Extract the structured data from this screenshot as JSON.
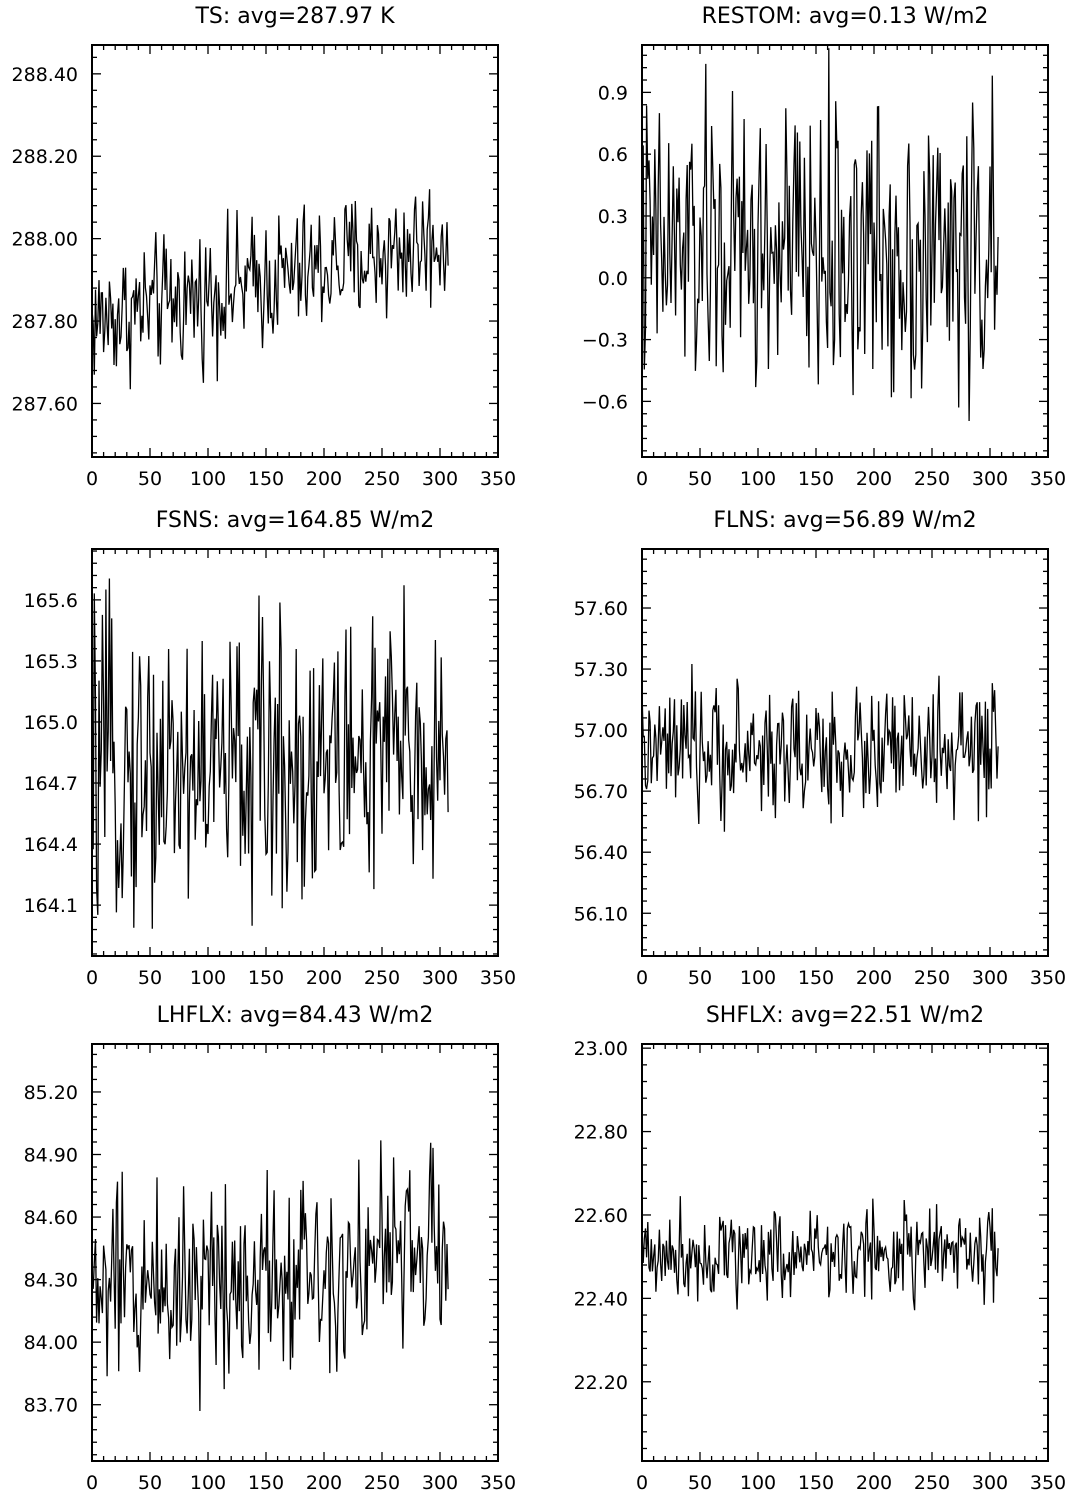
{
  "chart_data": [
    {
      "type": "line",
      "title": "TS: avg=287.97 K",
      "xlabel": "",
      "ylabel": "",
      "xlim": [
        0,
        350
      ],
      "ylim": [
        287.47,
        288.47
      ],
      "x_ticks": [
        0,
        50,
        100,
        150,
        200,
        250,
        300,
        350
      ],
      "x_tick_labels": [
        "0",
        "50",
        "100",
        "150",
        "200",
        "250",
        "300",
        "350"
      ],
      "y_ticks": [
        287.6,
        287.8,
        288.0,
        288.2,
        288.4
      ],
      "y_tick_labels": [
        "287.60",
        "287.80",
        "288.00",
        "288.20",
        "288.40"
      ],
      "series": [
        {
          "base": 287.9,
          "trend": 0.2,
          "amp": 0.1,
          "clip": [
            287.47,
            288.47
          ]
        }
      ]
    },
    {
      "type": "line",
      "title": "RESTOM: avg=0.13 W/m2",
      "xlabel": "",
      "ylabel": "",
      "xlim": [
        0,
        350
      ],
      "ylim": [
        -0.87,
        1.13
      ],
      "x_ticks": [
        0,
        50,
        100,
        150,
        200,
        250,
        300,
        350
      ],
      "x_tick_labels": [
        "0",
        "50",
        "100",
        "150",
        "200",
        "250",
        "300",
        "350"
      ],
      "y_ticks": [
        -0.6,
        -0.3,
        0.0,
        0.3,
        0.6,
        0.9
      ],
      "y_tick_labels": [
        "−0.6",
        "−0.3",
        "0.0",
        "0.3",
        "0.6",
        "0.9"
      ],
      "series": [
        {
          "base": 0.13,
          "trend": 0.0,
          "amp": 0.45,
          "clip": [
            -0.87,
            1.13
          ]
        }
      ]
    },
    {
      "type": "line",
      "title": "FSNS: avg=164.85 W/m2",
      "xlabel": "",
      "ylabel": "",
      "xlim": [
        0,
        350
      ],
      "ylim": [
        163.85,
        165.85
      ],
      "x_ticks": [
        0,
        50,
        100,
        150,
        200,
        250,
        300,
        350
      ],
      "x_tick_labels": [
        "0",
        "50",
        "100",
        "150",
        "200",
        "250",
        "300",
        "350"
      ],
      "y_ticks": [
        164.1,
        164.4,
        164.7,
        165.0,
        165.3,
        165.6
      ],
      "y_tick_labels": [
        "164.1",
        "164.4",
        "164.7",
        "165.0",
        "165.3",
        "165.6"
      ],
      "series": [
        {
          "base": 164.8,
          "trend": 0.1,
          "amp": 0.45,
          "clip": [
            163.85,
            165.85
          ]
        }
      ]
    },
    {
      "type": "line",
      "title": "FLNS: avg=56.89 W/m2",
      "xlabel": "",
      "ylabel": "",
      "xlim": [
        0,
        350
      ],
      "ylim": [
        55.89,
        57.89
      ],
      "x_ticks": [
        0,
        50,
        100,
        150,
        200,
        250,
        300,
        350
      ],
      "x_tick_labels": [
        "0",
        "50",
        "100",
        "150",
        "200",
        "250",
        "300",
        "350"
      ],
      "y_ticks": [
        56.1,
        56.4,
        56.7,
        57.0,
        57.3,
        57.6
      ],
      "y_tick_labels": [
        "56.10",
        "56.40",
        "56.70",
        "57.00",
        "57.30",
        "57.60"
      ],
      "series": [
        {
          "base": 56.89,
          "trend": 0.0,
          "amp": 0.2,
          "clip": [
            55.89,
            57.89
          ]
        }
      ]
    },
    {
      "type": "line",
      "title": "LHFLX: avg=84.43 W/m2",
      "xlabel": "",
      "ylabel": "",
      "xlim": [
        0,
        350
      ],
      "ylim": [
        83.43,
        85.43
      ],
      "x_ticks": [
        0,
        50,
        100,
        150,
        200,
        250,
        300,
        350
      ],
      "x_tick_labels": [
        "0",
        "50",
        "100",
        "150",
        "200",
        "250",
        "300",
        "350"
      ],
      "y_ticks": [
        83.7,
        84.0,
        84.3,
        84.6,
        84.9,
        85.2
      ],
      "y_tick_labels": [
        "83.70",
        "84.00",
        "84.30",
        "84.60",
        "84.90",
        "85.20"
      ],
      "series": [
        {
          "base": 84.35,
          "trend": 0.2,
          "amp": 0.3,
          "clip": [
            83.43,
            85.43
          ]
        }
      ]
    },
    {
      "type": "line",
      "title": "SHFLX: avg=22.51 W/m2",
      "xlabel": "",
      "ylabel": "",
      "xlim": [
        0,
        350
      ],
      "ylim": [
        22.01,
        23.01
      ],
      "x_ticks": [
        0,
        50,
        100,
        150,
        200,
        250,
        300,
        350
      ],
      "x_tick_labels": [
        "0",
        "50",
        "100",
        "150",
        "200",
        "250",
        "300",
        "350"
      ],
      "y_ticks": [
        22.2,
        22.4,
        22.6,
        22.8,
        23.0
      ],
      "y_tick_labels": [
        "22.20",
        "22.40",
        "22.60",
        "22.80",
        "23.00"
      ],
      "series": [
        {
          "base": 22.51,
          "trend": 0.0,
          "amp": 0.07,
          "clip": [
            22.01,
            23.01
          ]
        }
      ]
    }
  ]
}
